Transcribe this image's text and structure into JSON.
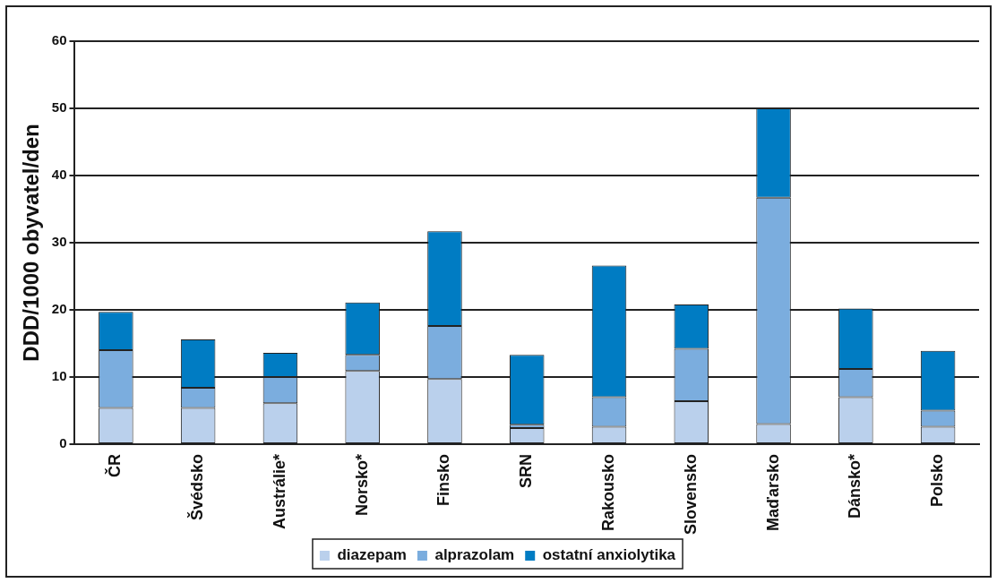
{
  "chart_data": {
    "type": "bar",
    "stacked": true,
    "ylabel": "DDD/1000 obyvatel/den",
    "categories": [
      "ČR",
      "Švédsko",
      "Austrálie*",
      "Norsko*",
      "Finsko",
      "SRN",
      "Rakousko",
      "Slovensko",
      "Maďarsko",
      "Dánsko*",
      "Polsko"
    ],
    "series": [
      {
        "name": "diazepam",
        "color": "#bad0ec",
        "values": [
          5.4,
          5.4,
          6.1,
          10.9,
          9.7,
          2.4,
          2.6,
          6.4,
          3.0,
          7.0,
          2.6
        ]
      },
      {
        "name": "alprazolam",
        "color": "#7badde",
        "values": [
          8.6,
          3.0,
          3.9,
          2.4,
          7.9,
          0.5,
          4.4,
          7.8,
          33.7,
          4.2,
          2.4
        ]
      },
      {
        "name": "ostatní anxiolytika",
        "color": "#007cc3",
        "values": [
          5.7,
          7.2,
          3.6,
          7.8,
          14.1,
          10.4,
          19.6,
          6.6,
          13.3,
          9.0,
          8.9
        ]
      }
    ],
    "ylim": [
      0,
      60
    ],
    "yticks": [
      0,
      10,
      20,
      30,
      40,
      50,
      60
    ],
    "grid": "y",
    "legend": "bottom"
  }
}
